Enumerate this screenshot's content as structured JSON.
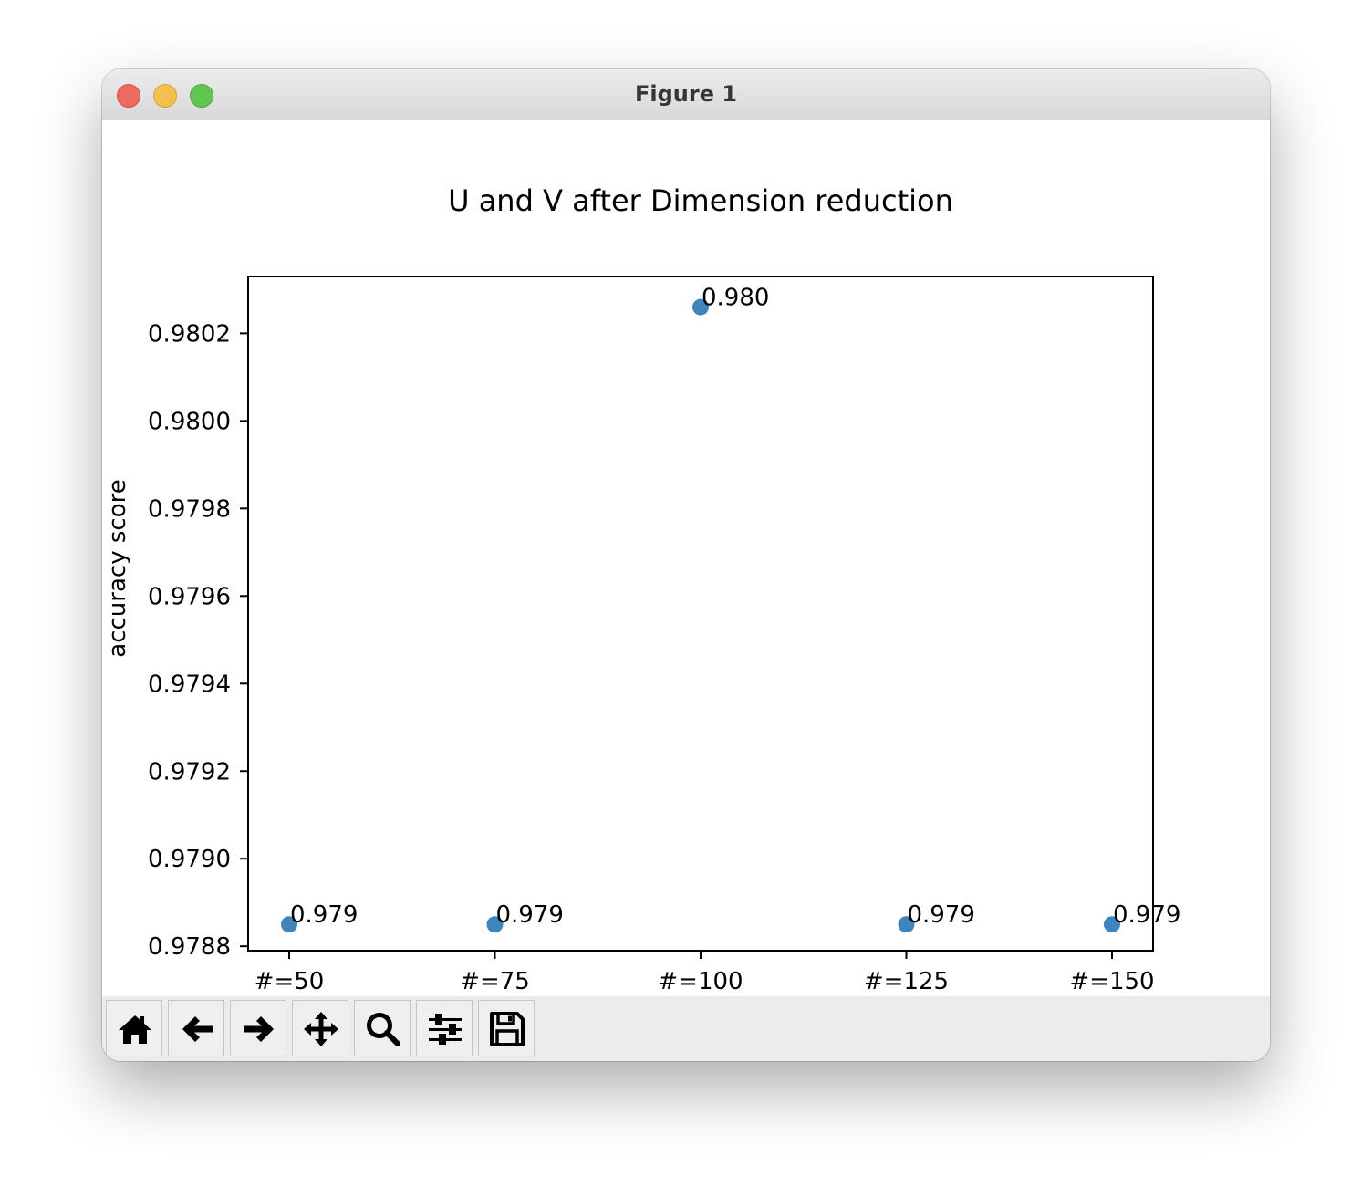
{
  "window": {
    "title": "Figure 1"
  },
  "toolbar": {
    "buttons": [
      {
        "icon": "home-icon"
      },
      {
        "icon": "back-arrow-icon"
      },
      {
        "icon": "forward-arrow-icon"
      },
      {
        "icon": "pan-move-icon"
      },
      {
        "icon": "zoom-magnifier-icon"
      },
      {
        "icon": "configure-sliders-icon"
      },
      {
        "icon": "save-floppy-icon"
      }
    ]
  },
  "chart_data": {
    "type": "scatter",
    "title": "U and V after Dimension reduction",
    "xlabel": "",
    "ylabel": "accuracy score",
    "categories": [
      "#=50",
      "#=75",
      "#=100",
      "#=125",
      "#=150"
    ],
    "values": [
      0.97885,
      0.97885,
      0.98026,
      0.97885,
      0.97885
    ],
    "point_labels": [
      "0.979",
      "0.979",
      "0.980",
      "0.979",
      "0.979"
    ],
    "ylim": [
      0.97879,
      0.98033
    ],
    "yticks": [
      0.9788,
      0.979,
      0.9792,
      0.9794,
      0.9796,
      0.9798,
      0.98,
      0.9802
    ],
    "ytick_labels": [
      "0.9788",
      "0.9790",
      "0.9792",
      "0.9794",
      "0.9796",
      "0.9798",
      "0.9800",
      "0.9802"
    ],
    "grid": false,
    "marker_color": "#3f84bb"
  }
}
